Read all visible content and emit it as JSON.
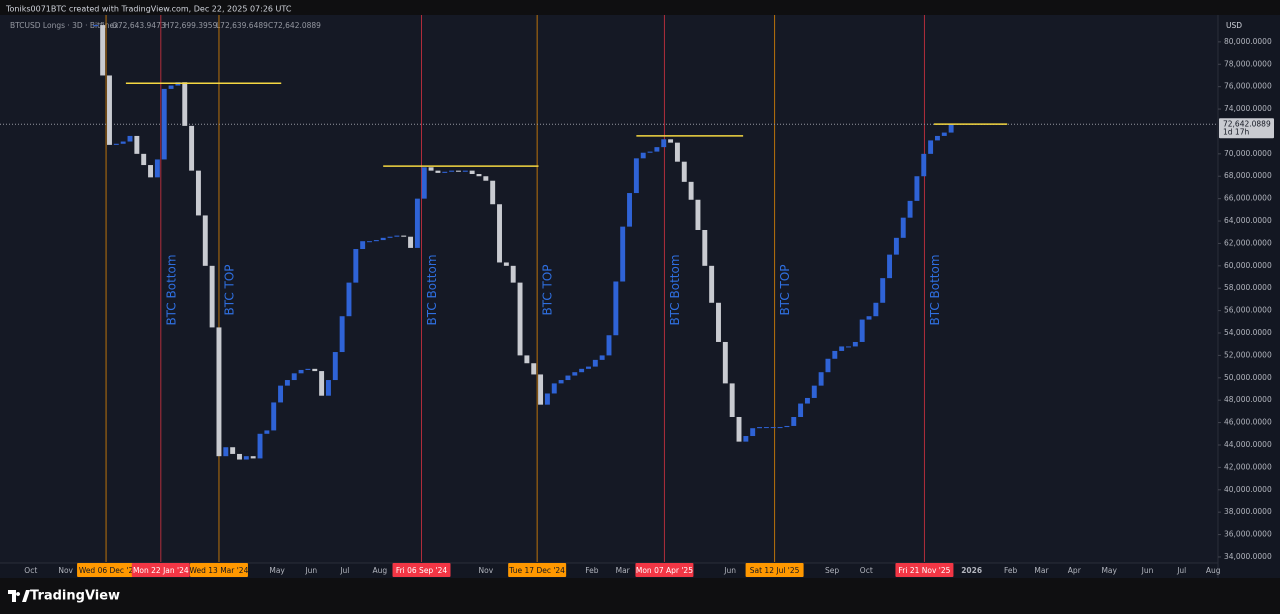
{
  "chart_data": {
    "type": "candlestick",
    "header": "Toniks0071BTC created with TradingView.com, Dec 22, 2025 07:26 UTC",
    "symbol": "BTCUSD Longs · 3D · Bitfinex",
    "ohlc": [
      "O72,643.9473",
      "H72,699.3959",
      "L72,639.6489",
      "C72,642.0889"
    ],
    "currency": "USD",
    "brand": "TradingView",
    "series": [
      {
        "up_color": "#2f63d6",
        "down_color": "#c9cbd1",
        "values": [
          81500,
          77000,
          70800,
          70900,
          71100,
          71600,
          70000,
          69000,
          67900,
          69500,
          75800,
          76100,
          76400,
          72500,
          68500,
          64500,
          60000,
          54500,
          43000,
          43800,
          43200,
          42700,
          43000,
          42800,
          45000,
          45300,
          47800,
          49300,
          49800,
          50400,
          50700,
          50800,
          50600,
          48400,
          49800,
          52300,
          55500,
          58500,
          61500,
          62200,
          62200,
          62300,
          62500,
          62600,
          62700,
          62600,
          61600,
          66000,
          68800,
          68500,
          68300,
          68400,
          68500,
          68400,
          68500,
          68200,
          68000,
          67600,
          65500,
          60300,
          60000,
          58500,
          52000,
          51300,
          50300,
          47600,
          48600,
          49500,
          49800,
          50200,
          50500,
          50800,
          51000,
          51600,
          52000,
          53800,
          58600,
          63500,
          66500,
          69600,
          70100,
          70200,
          70600,
          71300,
          71000,
          69300,
          67500,
          65900,
          63200,
          60000,
          56700,
          53200,
          49500,
          46500,
          44300,
          44800,
          45500,
          45600,
          45600,
          45600,
          45600,
          45700,
          46500,
          47700,
          48200,
          49300,
          50500,
          51700,
          52400,
          52800,
          52800,
          53200,
          55200,
          55500,
          56700,
          58900,
          61000,
          62500,
          64300,
          65800,
          68000,
          70000,
          71200,
          71600,
          71900,
          72642.0889
        ]
      }
    ],
    "xlim": [
      -14,
      164
    ],
    "xticks": [
      {
        "value": -9.5,
        "label": "Oct"
      },
      {
        "value": -4.4,
        "label": "Nov"
      },
      {
        "value": 26.5,
        "label": "May"
      },
      {
        "value": 31.5,
        "label": "Jun"
      },
      {
        "value": 36.4,
        "label": "Jul"
      },
      {
        "value": 41.5,
        "label": "Aug"
      },
      {
        "value": 57,
        "label": "Nov"
      },
      {
        "value": 72.5,
        "label": "Feb"
      },
      {
        "value": 77,
        "label": "Mar"
      },
      {
        "value": 92.7,
        "label": "Jun"
      },
      {
        "value": 107.6,
        "label": "Sep"
      },
      {
        "value": 112.6,
        "label": "Oct"
      },
      {
        "value": 128,
        "label": "2026"
      },
      {
        "value": 133.7,
        "label": "Feb"
      },
      {
        "value": 138.2,
        "label": "Mar"
      },
      {
        "value": 143,
        "label": "Apr"
      },
      {
        "value": 148.1,
        "label": "May"
      },
      {
        "value": 153.7,
        "label": "Jun"
      },
      {
        "value": 158.7,
        "label": "Jul"
      },
      {
        "value": 163.3,
        "label": "Aug"
      }
    ],
    "ylim": [
      33550,
      82400
    ],
    "yticks": [
      {
        "value": 34000,
        "label": "34,000.0000"
      },
      {
        "value": 36000,
        "label": "36,000.0000"
      },
      {
        "value": 38000,
        "label": "38,000.0000"
      },
      {
        "value": 40000,
        "label": "40,000.0000"
      },
      {
        "value": 42000,
        "label": "42,000.0000"
      },
      {
        "value": 44000,
        "label": "44,000.0000"
      },
      {
        "value": 46000,
        "label": "46,000.0000"
      },
      {
        "value": 48000,
        "label": "48,000.0000"
      },
      {
        "value": 50000,
        "label": "50,000.0000"
      },
      {
        "value": 52000,
        "label": "52,000.0000"
      },
      {
        "value": 54000,
        "label": "54,000.0000"
      },
      {
        "value": 56000,
        "label": "56,000.0000"
      },
      {
        "value": 58000,
        "label": "58,000.0000"
      },
      {
        "value": 60000,
        "label": "60,000.0000"
      },
      {
        "value": 62000,
        "label": "62,000.0000"
      },
      {
        "value": 64000,
        "label": "64,000.0000"
      },
      {
        "value": 66000,
        "label": "66,000.0000"
      },
      {
        "value": 68000,
        "label": "68,000.0000"
      },
      {
        "value": 70000,
        "label": "70,000.0000"
      },
      {
        "value": 74000,
        "label": "74,000.0000"
      },
      {
        "value": 76000,
        "label": "76,000.0000"
      },
      {
        "value": 78000,
        "label": "78,000.0000"
      },
      {
        "value": 80000,
        "label": "80,000.0000"
      }
    ],
    "markers": [
      {
        "x": 1.5,
        "label": "Wed 06 Dec '2",
        "color": "#ff9800"
      },
      {
        "x": 9.5,
        "label": "Mon 22 Jan '24",
        "color": "#f23645",
        "note": "BTC Bottom"
      },
      {
        "x": 18,
        "label": "Wed 13 Mar '24",
        "color": "#ff9800",
        "note": "BTC TOP"
      },
      {
        "x": 47.6,
        "label": "Fri 06 Sep '24",
        "color": "#f23645",
        "note": "BTC Bottom"
      },
      {
        "x": 64.5,
        "label": "Tue 17 Dec '24",
        "color": "#ff9800",
        "note": "BTC TOP"
      },
      {
        "x": 83.1,
        "label": "Mon 07 Apr '25",
        "color": "#f23645",
        "note": "BTC Bottom"
      },
      {
        "x": 99.2,
        "label": "Sat 12 Jul '25",
        "color": "#ff9800",
        "note": "BTC TOP"
      },
      {
        "x": 121.1,
        "label": "Fri 21 Nov '25",
        "color": "#f23645",
        "note": "BTC Bottom"
      }
    ],
    "note_color": "#2f6fe0",
    "level_color": "#f5d742",
    "levels": [
      {
        "value": 76300,
        "x0": 4.4,
        "x1": 27.1
      },
      {
        "value": 68900,
        "x0": 42,
        "x1": 64.7
      },
      {
        "value": 71600,
        "x0": 79,
        "x1": 94.6
      },
      {
        "value": 72650,
        "x0": 122.5,
        "x1": 133.2
      }
    ],
    "last_price": {
      "value": 72642.0889,
      "label": "72,642.0889",
      "countdown": "1d 17h"
    }
  }
}
